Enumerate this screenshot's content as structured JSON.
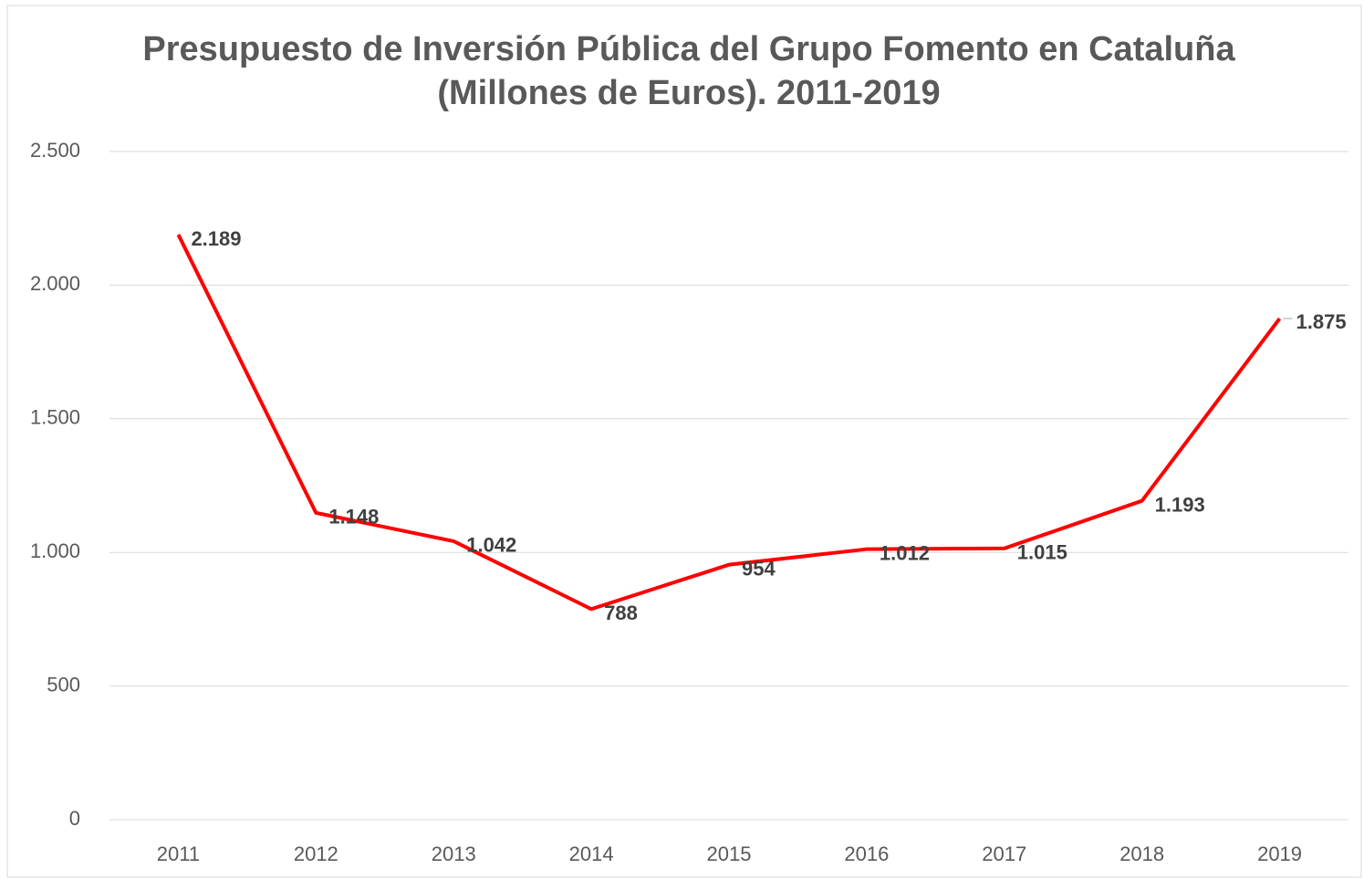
{
  "chart_data": {
    "type": "line",
    "title": "Presupuesto de Inversión Pública del Grupo Fomento en Cataluña (Millones de Euros). 2011-2019",
    "categories": [
      "2011",
      "2012",
      "2013",
      "2014",
      "2015",
      "2016",
      "2017",
      "2018",
      "2019"
    ],
    "series": [
      {
        "color": "#ff0000",
        "values": [
          2189,
          1148,
          1042,
          788,
          954,
          1012,
          1015,
          1193,
          1875
        ],
        "value_labels": [
          "2.189",
          "1.148",
          "1.042",
          "788",
          "954",
          "1.012",
          "1.015",
          "1.193",
          "1.875"
        ]
      }
    ],
    "ylim": [
      0,
      2500
    ],
    "yticks": [
      0,
      500,
      {
        "value": 1000,
        "label": "1.000"
      },
      {
        "value": 1500,
        "label": "1.500"
      },
      {
        "value": 2000,
        "label": "2.000"
      },
      {
        "value": 2500,
        "label": "2.500"
      }
    ],
    "grid": true
  }
}
